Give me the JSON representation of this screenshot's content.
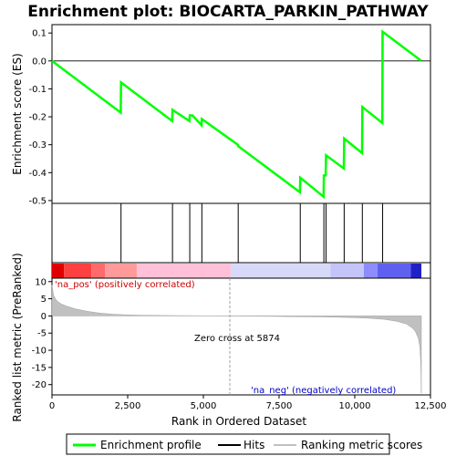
{
  "chart_data": {
    "type": "line",
    "title": "Enrichment plot: BIOCARTA_PARKIN_PATHWAY",
    "xlabel": "Rank in Ordered Dataset",
    "ylabel_top": "Enrichment score (ES)",
    "ylabel_bottom": "Ranked list metric (PreRanked)",
    "xlim": [
      0,
      12500
    ],
    "es_ylim": [
      -0.51,
      0.13
    ],
    "metric_ylim": [
      -23,
      11
    ],
    "x_ticks": [
      0,
      2500,
      5000,
      7500,
      10000,
      12500
    ],
    "x_tick_labels": [
      "0",
      "2,500",
      "5,000",
      "7,500",
      "10,000",
      "12,500"
    ],
    "es_ticks": [
      0.1,
      0.0,
      -0.1,
      -0.2,
      -0.3,
      -0.4,
      -0.5
    ],
    "es_tick_labels": [
      "0.1",
      "0.0",
      "-0.1",
      "-0.2",
      "-0.3",
      "-0.4",
      "-0.5"
    ],
    "metric_ticks": [
      10,
      5,
      0,
      -5,
      -10,
      -15,
      -20
    ],
    "metric_tick_labels": [
      "10",
      "5",
      "0",
      "-5",
      "-10",
      "-15",
      "-20"
    ],
    "hits": [
      2280,
      3980,
      4550,
      4950,
      6150,
      8200,
      8980,
      9050,
      9650,
      10250,
      10920
    ],
    "es_curve": {
      "x": [
        0,
        2270,
        2280,
        3970,
        3980,
        4540,
        4550,
        4640,
        4940,
        4950,
        6140,
        6150,
        8190,
        8200,
        8970,
        8980,
        9040,
        9050,
        9640,
        9650,
        10240,
        10250,
        10910,
        10920,
        12200
      ],
      "y": [
        0.0,
        -0.185,
        -0.077,
        -0.215,
        -0.175,
        -0.215,
        -0.195,
        -0.195,
        -0.23,
        -0.208,
        -0.3,
        -0.305,
        -0.47,
        -0.418,
        -0.486,
        -0.41,
        -0.41,
        -0.338,
        -0.385,
        -0.278,
        -0.33,
        -0.165,
        -0.222,
        0.105,
        0.0
      ]
    },
    "metric_curve": {
      "x": [
        0,
        50,
        150,
        300,
        500,
        800,
        1200,
        1600,
        2000,
        2500,
        3000,
        4000,
        5000,
        5874,
        7000,
        8000,
        9000,
        9500,
        10000,
        10500,
        11000,
        11400,
        11700,
        11900,
        12000,
        12100,
        12150,
        12180,
        12200
      ],
      "y": [
        9.0,
        6.0,
        4.5,
        3.5,
        2.8,
        2.0,
        1.3,
        0.8,
        0.5,
        0.3,
        0.2,
        0.1,
        0.05,
        0.0,
        -0.1,
        -0.2,
        -0.3,
        -0.4,
        -0.5,
        -0.7,
        -1.0,
        -1.6,
        -2.3,
        -3.5,
        -4.5,
        -6.5,
        -9.0,
        -14.0,
        -22.5
      ]
    },
    "color_bar": {
      "stops": [
        "#ff0000",
        "#ff6060",
        "#ffc8d8",
        "#f0d0f0",
        "#d4d4f8",
        "#8c8cff",
        "#3030e8"
      ]
    },
    "annotations": {
      "pos_label": "'na_pos' (positively correlated)",
      "neg_label": "'na_neg' (negatively correlated)",
      "zero_cross": "Zero cross at 5874",
      "zero_cross_x": 5874
    },
    "legend": [
      {
        "label": "Enrichment profile",
        "color": "#00ff00"
      },
      {
        "label": "Hits",
        "color": "#000000"
      },
      {
        "label": "Ranking metric scores",
        "color": "#c0c0c0"
      }
    ],
    "colors": {
      "es_line": "#00ff00",
      "metric_fill": "#c0c0c0",
      "pos_label": "#cc0000",
      "neg_label": "#0000cc"
    }
  }
}
